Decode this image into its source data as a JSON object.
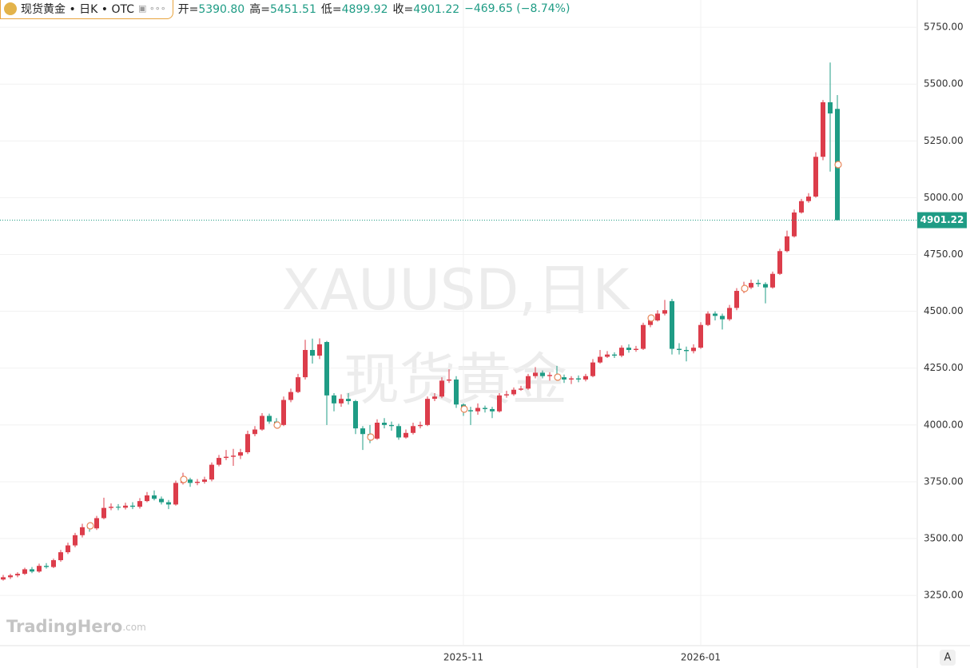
{
  "header": {
    "symbol": "现货黄金 • 日K • OTC",
    "fields": [
      {
        "label": "开=",
        "value": "5390.80"
      },
      {
        "label": "高=",
        "value": "5451.51"
      },
      {
        "label": "低=",
        "value": "4899.92"
      },
      {
        "label": "收=",
        "value": "4901.22"
      }
    ],
    "change": "−469.65 (−8.74%)"
  },
  "watermark": {
    "line1": "XAUUSD,日K",
    "line2": "现货黄金"
  },
  "logo": {
    "name": "TradingHero",
    "suffix": ".com"
  },
  "axis_button": "A",
  "chart_data": {
    "type": "candlestick",
    "up_color": "#dc3d4b",
    "down_color": "#1f9c85",
    "grid": true,
    "ylim": [
      3029,
      5870
    ],
    "yticks": [
      {
        "value": 3250,
        "label": "3250.00"
      },
      {
        "value": 3500,
        "label": "3500.00"
      },
      {
        "value": 3750,
        "label": "3750.00"
      },
      {
        "value": 4000,
        "label": "4000.00"
      },
      {
        "value": 4250,
        "label": "4250.00"
      },
      {
        "value": 4500,
        "label": "4500.00"
      },
      {
        "value": 4750,
        "label": "4750.00"
      },
      {
        "value": 5000,
        "label": "5000.00"
      },
      {
        "value": 5250,
        "label": "5250.00"
      },
      {
        "value": 5500,
        "label": "5500.00"
      },
      {
        "value": 5750,
        "label": "5750.00"
      }
    ],
    "categories": [
      null,
      null,
      null,
      null,
      null,
      null,
      null,
      null,
      null,
      null,
      null,
      null,
      null,
      null,
      null,
      null,
      null,
      null,
      null,
      null,
      null,
      null,
      null,
      null,
      null,
      null,
      null,
      null,
      null,
      null,
      null,
      null,
      null,
      null,
      null,
      null,
      null,
      null,
      null,
      null,
      null,
      null,
      null,
      null,
      null,
      null,
      null,
      null,
      null,
      null,
      null,
      null,
      null,
      null,
      null,
      null,
      null,
      null,
      null,
      null,
      null,
      null,
      null,
      null,
      "2025-11",
      null,
      null,
      null,
      null,
      null,
      null,
      null,
      null,
      null,
      null,
      null,
      null,
      null,
      null,
      null,
      null,
      null,
      null,
      null,
      null,
      null,
      null,
      null,
      null,
      null,
      null,
      null,
      null,
      null,
      null,
      null,
      null,
      "2026-01",
      null,
      null,
      null,
      null,
      null,
      null,
      null,
      null,
      null,
      null,
      null,
      null,
      null,
      null,
      null,
      null,
      null,
      null,
      null
    ],
    "open": [
      3320,
      3330,
      3338,
      3345,
      3365,
      3355,
      3380,
      3375,
      3405,
      3440,
      3470,
      3515,
      3550,
      3545,
      3590,
      3635,
      3640,
      3636,
      3645,
      3640,
      3665,
      3690,
      3675,
      3660,
      3650,
      3745,
      3760,
      3745,
      3750,
      3760,
      3825,
      3855,
      3860,
      3865,
      3880,
      3960,
      3980,
      4040,
      4015,
      4000,
      4110,
      4145,
      4210,
      4330,
      4305,
      4365,
      4130,
      4095,
      4115,
      4105,
      3985,
      3960,
      3940,
      4010,
      4000,
      3995,
      3945,
      3965,
      3995,
      4000,
      4115,
      4125,
      4195,
      4200,
      4090,
      4065,
      4060,
      4075,
      4070,
      4060,
      4130,
      4135,
      4155,
      4160,
      4215,
      4230,
      4215,
      4220,
      4210,
      4200,
      4205,
      4200,
      4215,
      4275,
      4300,
      4310,
      4305,
      4340,
      4330,
      4335,
      4440,
      4460,
      4490,
      4545,
      4335,
      4330,
      4325,
      4340,
      4440,
      4490,
      4480,
      4465,
      4515,
      4590,
      4605,
      4625,
      4620,
      4605,
      4665,
      4765,
      4830,
      4935,
      4985,
      5005,
      5180,
      5420,
      5390.8
    ],
    "high": [
      3340,
      3345,
      3352,
      3372,
      3375,
      3390,
      3392,
      3412,
      3450,
      3482,
      3525,
      3565,
      3570,
      3600,
      3680,
      3655,
      3652,
      3658,
      3660,
      3678,
      3705,
      3712,
      3685,
      3670,
      3755,
      3790,
      3768,
      3762,
      3772,
      3835,
      3868,
      3890,
      3895,
      3895,
      3975,
      3995,
      4052,
      4050,
      4030,
      4125,
      4160,
      4225,
      4375,
      4380,
      4381,
      4370,
      4140,
      4135,
      4140,
      4110,
      3995,
      4000,
      4025,
      4030,
      4015,
      4005,
      3980,
      4010,
      4015,
      4125,
      4140,
      4210,
      4245,
      4215,
      4095,
      4080,
      4095,
      4085,
      4080,
      4140,
      4150,
      4165,
      4172,
      4225,
      4255,
      4240,
      4232,
      4260,
      4222,
      4215,
      4218,
      4225,
      4290,
      4330,
      4325,
      4320,
      4350,
      4355,
      4348,
      4450,
      4475,
      4505,
      4550,
      4555,
      4360,
      4345,
      4355,
      4452,
      4500,
      4500,
      4490,
      4528,
      4602,
      4630,
      4640,
      4640,
      4628,
      4675,
      4775,
      4855,
      4948,
      4995,
      5020,
      5200,
      5430,
      5595,
      5451.51
    ],
    "low": [
      3315,
      3322,
      3330,
      3340,
      3348,
      3350,
      3368,
      3370,
      3398,
      3432,
      3462,
      3505,
      3530,
      3538,
      3585,
      3625,
      3625,
      3628,
      3630,
      3632,
      3660,
      3668,
      3650,
      3630,
      3645,
      3738,
      3728,
      3735,
      3742,
      3752,
      3818,
      3845,
      3820,
      3850,
      3872,
      3950,
      3975,
      4005,
      3990,
      3995,
      4100,
      4140,
      4200,
      4270,
      4290,
      4000,
      4060,
      4080,
      4090,
      3960,
      3890,
      3920,
      3935,
      3985,
      3975,
      3935,
      3940,
      3958,
      3985,
      3995,
      4105,
      4118,
      4185,
      4075,
      4040,
      4000,
      4045,
      4055,
      4030,
      4055,
      4120,
      4128,
      4150,
      4155,
      4205,
      4205,
      4195,
      4195,
      4185,
      4180,
      4188,
      4192,
      4210,
      4270,
      4295,
      4295,
      4298,
      4318,
      4322,
      4330,
      4430,
      4455,
      4482,
      4310,
      4310,
      4280,
      4315,
      4335,
      4435,
      4460,
      4420,
      4458,
      4505,
      4580,
      4598,
      4608,
      4535,
      4600,
      4660,
      4760,
      4825,
      4930,
      4978,
      5000,
      5165,
      5115,
      4899.92
    ],
    "close": [
      3330,
      3338,
      3345,
      3365,
      3355,
      3380,
      3375,
      3405,
      3440,
      3470,
      3515,
      3550,
      3545,
      3590,
      3635,
      3640,
      3636,
      3645,
      3640,
      3665,
      3690,
      3675,
      3660,
      3650,
      3745,
      3760,
      3745,
      3750,
      3760,
      3825,
      3855,
      3860,
      3865,
      3880,
      3960,
      3980,
      4040,
      4015,
      4000,
      4110,
      4145,
      4210,
      4330,
      4305,
      4355,
      4130,
      4095,
      4115,
      4105,
      3985,
      3960,
      3940,
      4010,
      4000,
      3995,
      3945,
      3965,
      3995,
      4000,
      4115,
      4125,
      4195,
      4200,
      4090,
      4065,
      4060,
      4075,
      4070,
      4060,
      4130,
      4135,
      4155,
      4160,
      4215,
      4230,
      4215,
      4220,
      4210,
      4200,
      4205,
      4200,
      4215,
      4275,
      4300,
      4310,
      4305,
      4340,
      4330,
      4335,
      4440,
      4460,
      4490,
      4505,
      4335,
      4330,
      4325,
      4340,
      4440,
      4490,
      4480,
      4465,
      4515,
      4590,
      4605,
      4625,
      4620,
      4605,
      4665,
      4765,
      4830,
      4935,
      4985,
      5005,
      5180,
      5420,
      5370.87,
      4901.22
    ]
  }
}
